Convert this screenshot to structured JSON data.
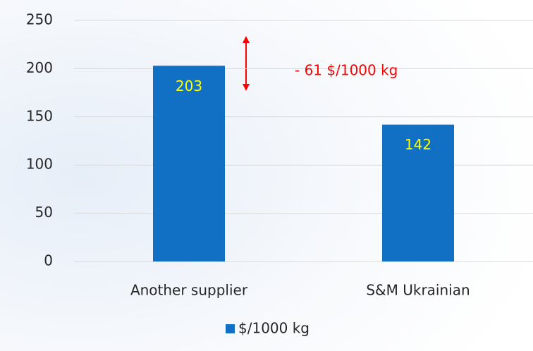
{
  "chart_data": {
    "type": "bar",
    "categories": [
      "Another supplier",
      "S&M Ukrainian"
    ],
    "series": [
      {
        "name": "$/1000 kg",
        "color": "#1170c4",
        "values": [
          203,
          142
        ]
      }
    ],
    "ylim": [
      0,
      250
    ],
    "yticks": [
      0,
      50,
      100,
      150,
      200,
      250
    ],
    "grid": true,
    "value_label_color": "#ffff00",
    "annotation": "- 61 $/1000 kg",
    "annotation_color": "#ff0000",
    "legend": "bottom"
  }
}
